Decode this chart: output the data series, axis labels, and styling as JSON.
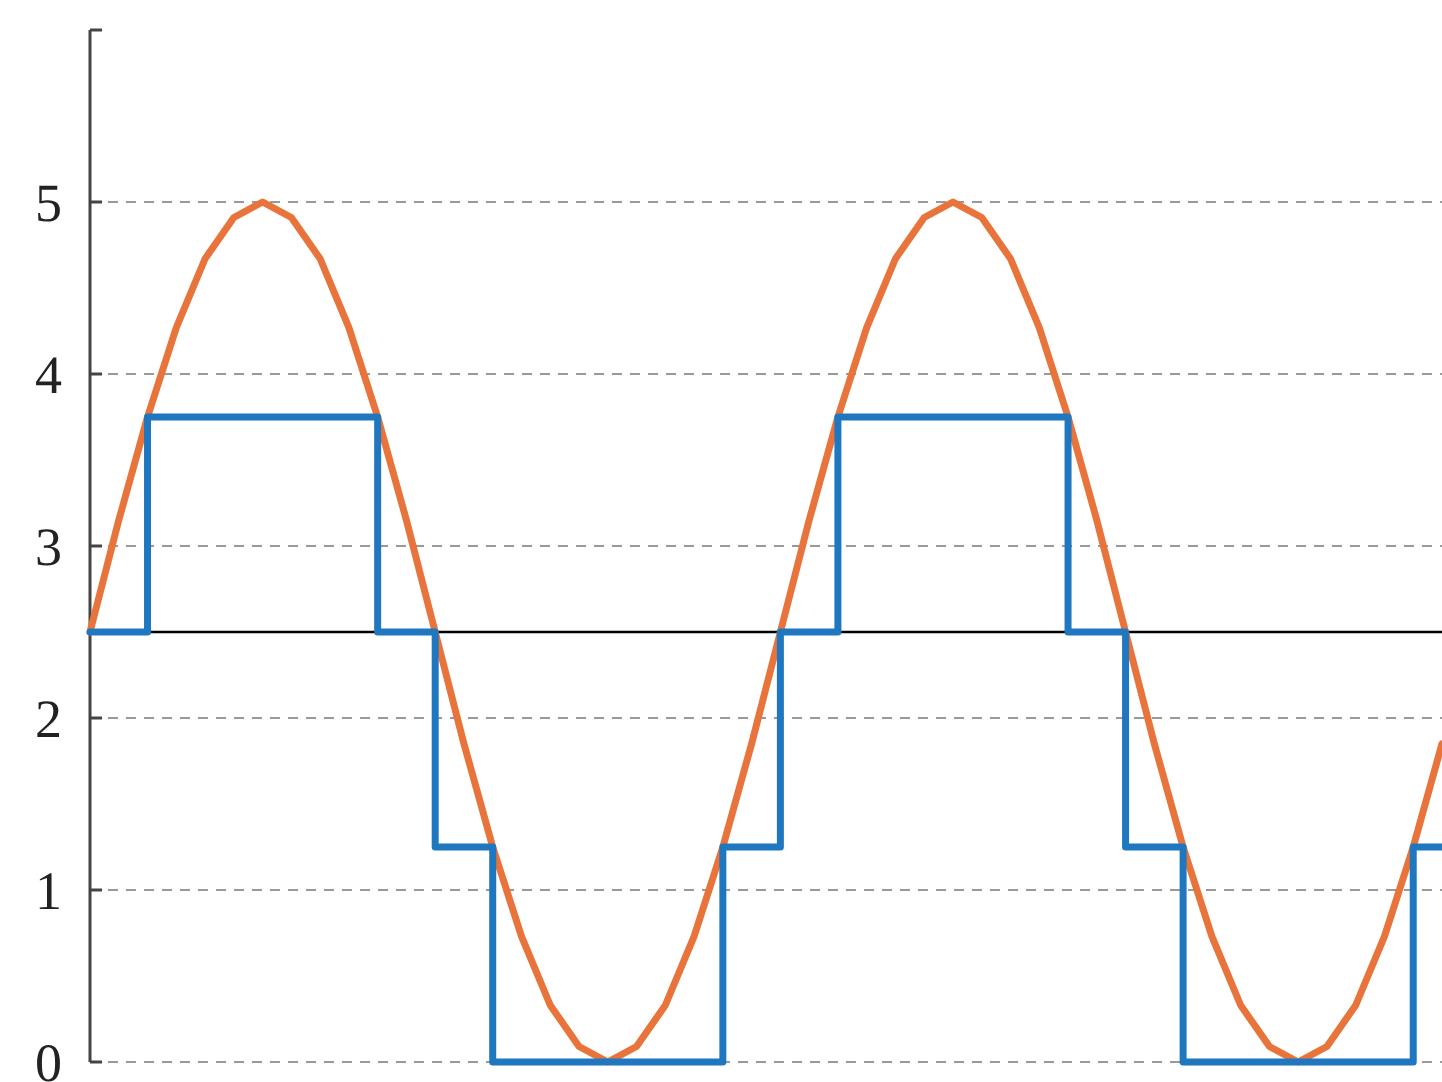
{
  "chart_data": {
    "type": "line",
    "tick_labels": "y",
    "grid": "y",
    "ylim": [
      0,
      6
    ],
    "yticks": [
      0,
      1,
      2,
      3,
      4,
      5,
      {
        "value": 6,
        "label": null
      }
    ],
    "categories": [
      null,
      null,
      null,
      null,
      null,
      null,
      null,
      null,
      null,
      null,
      null,
      null,
      null,
      null,
      null,
      null,
      null,
      null,
      null,
      null,
      null,
      null,
      null,
      null,
      null,
      null,
      null,
      null,
      null,
      null,
      null,
      null,
      null,
      null,
      null,
      null,
      null,
      null,
      null,
      null,
      null,
      null,
      null,
      null,
      null,
      null,
      null,
      null
    ],
    "ref_lines": [
      {
        "axis": "y",
        "value": 2.5,
        "color": "#000000",
        "line_style": "solid"
      }
    ],
    "series": [
      {
        "color": "#e8743b",
        "values": [
          2.5,
          3.15,
          3.75,
          4.27,
          4.67,
          4.91,
          5,
          4.91,
          4.67,
          4.27,
          3.75,
          3.15,
          2.5,
          1.85,
          1.25,
          0.73,
          0.33,
          0.09,
          0,
          0.09,
          0.33,
          0.73,
          1.25,
          1.85,
          2.5,
          3.15,
          3.75,
          4.27,
          4.67,
          4.91,
          5,
          4.91,
          4.67,
          4.27,
          3.75,
          3.15,
          2.5,
          1.85,
          1.25,
          0.73,
          0.33,
          0.09,
          0,
          0.09,
          0.33,
          0.73,
          1.25,
          1.85
        ]
      },
      {
        "type": "step",
        "color": "#1f77c0",
        "values": [
          2.5,
          2.5,
          3.75,
          3.75,
          3.75,
          3.75,
          3.75,
          3.75,
          3.75,
          3.75,
          2.5,
          2.5,
          1.25,
          1.25,
          0,
          0,
          0,
          0,
          0,
          0,
          0,
          0,
          1.25,
          1.25,
          2.5,
          2.5,
          3.75,
          3.75,
          3.75,
          3.75,
          3.75,
          3.75,
          3.75,
          3.75,
          2.5,
          2.5,
          1.25,
          1.25,
          0,
          0,
          0,
          0,
          0,
          0,
          0,
          0,
          1.25,
          1.25
        ]
      }
    ]
  }
}
